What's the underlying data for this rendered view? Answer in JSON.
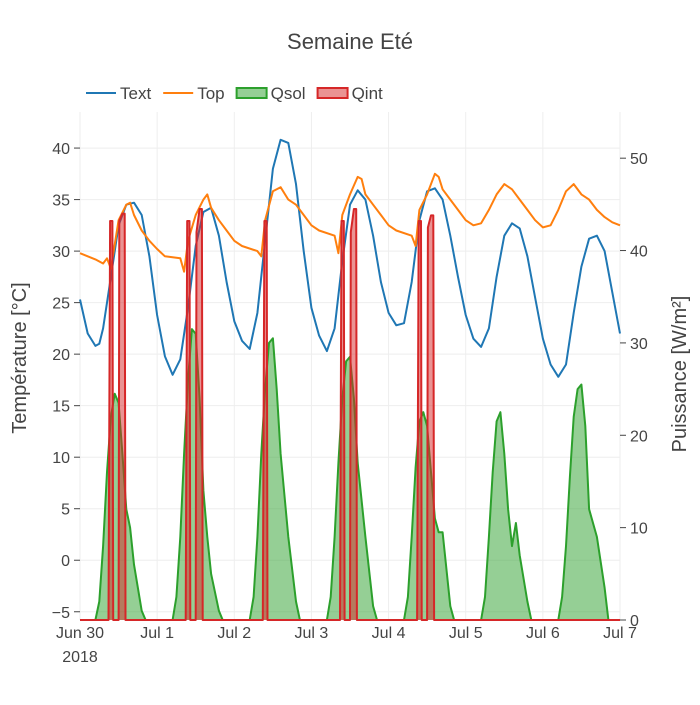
{
  "chart_data": {
    "type": "line",
    "title": "Semaine Eté",
    "ylabel": "Température [°C]",
    "y2label": "Puissance [W/m²]",
    "xlabel": "",
    "x_tick_labels": [
      "Jun 30",
      "Jul 1",
      "Jul 2",
      "Jul 3",
      "Jul 4",
      "Jul 5",
      "Jul 6",
      "Jul 7"
    ],
    "x_year_label": "2018",
    "xlim": [
      0,
      7
    ],
    "ylim": [
      -5.8,
      43.5
    ],
    "y2lim": [
      0,
      55
    ],
    "y_ticks": [
      -5,
      0,
      5,
      10,
      15,
      20,
      25,
      30,
      35,
      40
    ],
    "y_tick_labels": [
      "−5",
      "0",
      "5",
      "10",
      "15",
      "20",
      "25",
      "30",
      "35",
      "40"
    ],
    "y2_ticks": [
      0,
      10,
      20,
      30,
      40,
      50
    ],
    "y2_tick_labels": [
      "0",
      "10",
      "20",
      "30",
      "40",
      "50"
    ],
    "grid": true,
    "legend_position": "top-left",
    "series": [
      {
        "name": "Text",
        "kind": "line",
        "axis": "y",
        "color": "#1f77b4",
        "x": [
          0,
          0.1,
          0.2,
          0.25,
          0.3,
          0.4,
          0.5,
          0.6,
          0.7,
          0.8,
          0.9,
          1.0,
          1.1,
          1.2,
          1.3,
          1.4,
          1.5,
          1.6,
          1.7,
          1.8,
          1.9,
          2.0,
          2.1,
          2.2,
          2.3,
          2.4,
          2.5,
          2.6,
          2.7,
          2.8,
          2.9,
          3.0,
          3.1,
          3.2,
          3.3,
          3.4,
          3.5,
          3.6,
          3.7,
          3.8,
          3.9,
          4.0,
          4.1,
          4.2,
          4.3,
          4.4,
          4.5,
          4.6,
          4.7,
          4.8,
          4.9,
          5.0,
          5.1,
          5.2,
          5.3,
          5.4,
          5.5,
          5.6,
          5.7,
          5.8,
          5.9,
          6.0,
          6.1,
          6.2,
          6.3,
          6.4,
          6.5,
          6.6,
          6.7,
          6.8,
          6.9,
          7.0
        ],
        "y": [
          25.3,
          22.0,
          20.8,
          21.0,
          22.5,
          27.5,
          32.5,
          34.5,
          34.7,
          33.5,
          29.5,
          23.8,
          19.8,
          18.0,
          19.5,
          24.5,
          30.5,
          33.8,
          34.2,
          31.5,
          27.0,
          23.2,
          21.3,
          20.5,
          24.0,
          31.0,
          38.0,
          40.8,
          40.5,
          36.5,
          30.0,
          24.5,
          21.8,
          20.3,
          22.5,
          29.0,
          34.5,
          35.9,
          35.0,
          31.5,
          27.0,
          24.0,
          22.8,
          23.0,
          27.0,
          33.0,
          35.8,
          36.1,
          35.0,
          31.5,
          27.5,
          23.8,
          21.5,
          20.7,
          22.5,
          27.5,
          31.5,
          32.7,
          32.2,
          29.5,
          25.5,
          21.5,
          19.0,
          17.8,
          19.0,
          24.0,
          28.5,
          31.2,
          31.5,
          30.0,
          26.0,
          22.0
        ]
      },
      {
        "name": "Top",
        "kind": "line",
        "axis": "y",
        "color": "#ff7f0e",
        "x": [
          0,
          0.1,
          0.2,
          0.3,
          0.35,
          0.4,
          0.5,
          0.6,
          0.65,
          0.7,
          0.8,
          0.9,
          1.0,
          1.1,
          1.3,
          1.35,
          1.4,
          1.5,
          1.6,
          1.65,
          1.7,
          1.8,
          1.9,
          2.0,
          2.1,
          2.3,
          2.35,
          2.4,
          2.5,
          2.6,
          2.7,
          2.8,
          2.9,
          3.0,
          3.1,
          3.3,
          3.35,
          3.4,
          3.5,
          3.6,
          3.65,
          3.7,
          3.8,
          3.9,
          4.0,
          4.1,
          4.3,
          4.35,
          4.4,
          4.5,
          4.6,
          4.65,
          4.7,
          4.8,
          4.9,
          5.0,
          5.1,
          5.2,
          5.3,
          5.4,
          5.5,
          5.6,
          5.7,
          5.8,
          5.9,
          6.0,
          6.1,
          6.2,
          6.3,
          6.4,
          6.5,
          6.6,
          6.7,
          6.8,
          6.9,
          7.0
        ],
        "y": [
          29.8,
          29.5,
          29.2,
          28.8,
          29.3,
          28.3,
          33.0,
          34.5,
          34.7,
          33.5,
          32.0,
          31.0,
          30.2,
          29.5,
          29.3,
          28.0,
          31.0,
          33.5,
          35.0,
          35.5,
          34.2,
          33.0,
          32.0,
          31.0,
          30.5,
          30.0,
          29.5,
          33.0,
          35.8,
          36.2,
          35.0,
          34.5,
          33.5,
          32.5,
          32.0,
          31.5,
          29.8,
          33.5,
          35.5,
          37.2,
          37.0,
          35.5,
          34.5,
          33.5,
          32.5,
          32.0,
          31.5,
          30.5,
          34.0,
          35.5,
          37.5,
          37.2,
          36.0,
          35.0,
          34.0,
          33.0,
          32.5,
          32.7,
          34.0,
          35.5,
          36.5,
          36.0,
          35.0,
          34.0,
          33.0,
          32.3,
          32.5,
          34.0,
          35.8,
          36.5,
          35.5,
          35.0,
          34.0,
          33.3,
          32.8,
          32.5
        ]
      },
      {
        "name": "Qsol",
        "kind": "area",
        "axis": "y2",
        "color": "#2ca02c",
        "fill": "rgba(44,160,44,0.5)",
        "x": [
          0,
          0.2,
          0.25,
          0.3,
          0.35,
          0.4,
          0.45,
          0.5,
          0.55,
          0.6,
          0.65,
          0.7,
          0.8,
          0.85,
          1.2,
          1.25,
          1.3,
          1.35,
          1.4,
          1.45,
          1.5,
          1.55,
          1.6,
          1.65,
          1.7,
          1.8,
          1.85,
          2.2,
          2.25,
          2.3,
          2.35,
          2.4,
          2.45,
          2.5,
          2.55,
          2.6,
          2.7,
          2.8,
          2.85,
          3.2,
          3.25,
          3.3,
          3.35,
          3.4,
          3.45,
          3.5,
          3.55,
          3.6,
          3.7,
          3.8,
          3.85,
          4.2,
          4.25,
          4.3,
          4.35,
          4.4,
          4.45,
          4.5,
          4.55,
          4.6,
          4.65,
          4.7,
          4.8,
          4.85,
          5.2,
          5.25,
          5.3,
          5.35,
          5.4,
          5.45,
          5.5,
          5.55,
          5.6,
          5.65,
          5.7,
          5.8,
          5.85,
          6.2,
          6.25,
          6.3,
          6.35,
          6.4,
          6.45,
          6.5,
          6.55,
          6.6,
          6.7,
          6.8,
          6.85,
          7.0
        ],
        "y": [
          0,
          0,
          2.0,
          8.0,
          16.0,
          22.0,
          24.5,
          23.5,
          18.0,
          12.0,
          10.0,
          6.0,
          1.0,
          0,
          0,
          2.5,
          9.0,
          18.0,
          26.0,
          31.5,
          31.0,
          24.0,
          14.0,
          9.0,
          5.0,
          1.0,
          0,
          0,
          2.5,
          9.0,
          18.0,
          25.0,
          30.0,
          30.5,
          25.0,
          18.0,
          9.0,
          2.0,
          0,
          0,
          2.5,
          9.0,
          17.0,
          24.0,
          28.0,
          28.5,
          24.0,
          17.0,
          9.0,
          1.5,
          0,
          0,
          2.5,
          9.0,
          16.5,
          21.5,
          22.5,
          21.0,
          16.0,
          11.0,
          9.5,
          9.5,
          1.5,
          0,
          0,
          2.5,
          9.0,
          16.0,
          21.5,
          22.5,
          18.0,
          12.0,
          8.0,
          10.5,
          7.0,
          2.0,
          0,
          0,
          2.5,
          8.0,
          15.5,
          22.0,
          25.0,
          25.5,
          21.0,
          12.0,
          9.0,
          3.5,
          0,
          0
        ]
      },
      {
        "name": "Qint",
        "kind": "area",
        "axis": "y2",
        "color": "#d62728",
        "fill": "rgba(214,39,40,0.5)",
        "x": [
          0,
          0.37,
          0.39,
          0.42,
          0.43,
          0.5,
          0.51,
          0.55,
          0.58,
          0.59,
          1.37,
          1.39,
          1.42,
          1.43,
          1.5,
          1.51,
          1.55,
          1.58,
          1.59,
          2.37,
          2.39,
          2.42,
          2.43,
          3.37,
          3.39,
          3.42,
          3.43,
          3.5,
          3.51,
          3.55,
          3.58,
          3.59,
          4.37,
          4.39,
          4.42,
          4.43,
          4.5,
          4.51,
          4.55,
          4.58,
          4.59,
          7.0
        ],
        "y": [
          0,
          0,
          43.2,
          43.2,
          0,
          0,
          43.2,
          44.0,
          44.0,
          0,
          0,
          43.2,
          43.2,
          0,
          0,
          42.0,
          44.5,
          44.5,
          0,
          0,
          43.2,
          43.2,
          0,
          0,
          43.2,
          43.2,
          0,
          0,
          42.0,
          44.5,
          44.5,
          0,
          0,
          43.2,
          43.2,
          0,
          0,
          42.5,
          43.8,
          43.8,
          0,
          0
        ]
      }
    ]
  }
}
